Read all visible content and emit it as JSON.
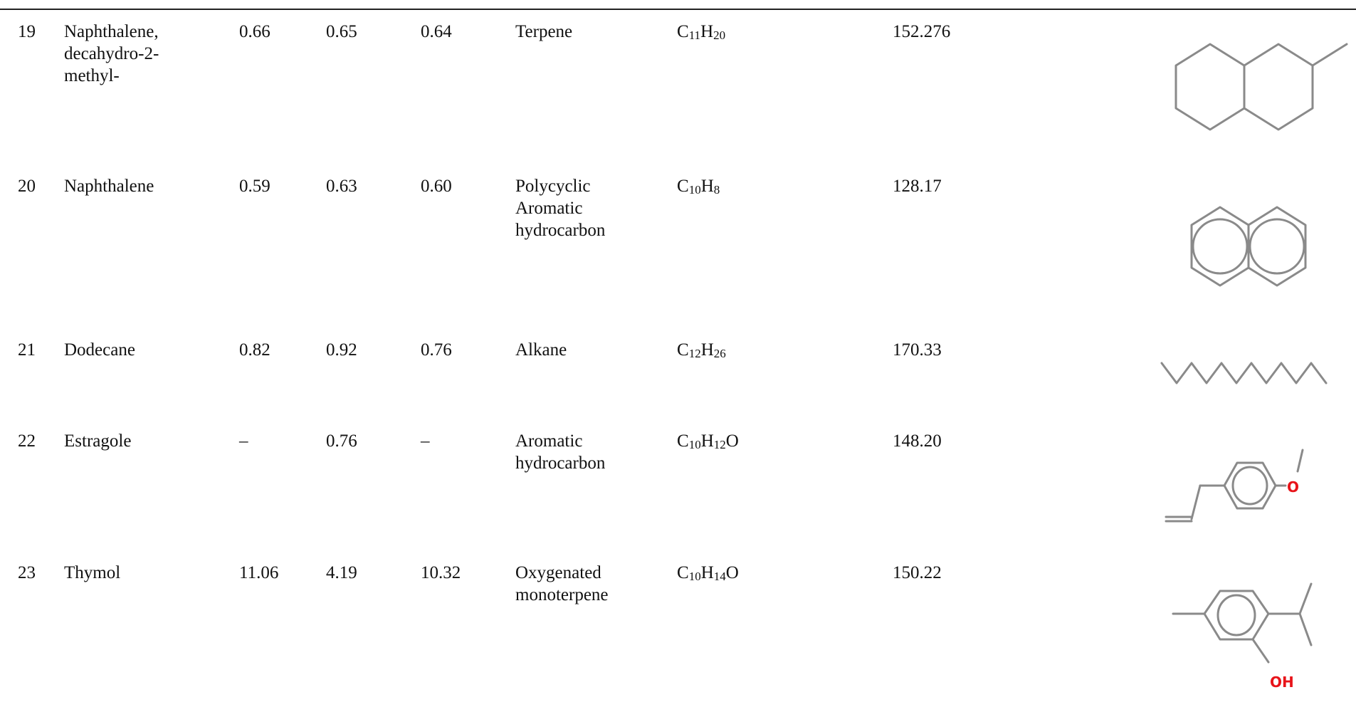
{
  "rows": [
    {
      "num": "19",
      "name_lines": [
        "Naphthalene,",
        "decahydro-2-",
        "methyl-"
      ],
      "v1": "0.66",
      "v2": "0.65",
      "v3": "0.64",
      "class_lines": [
        "Terpene"
      ],
      "formula": {
        "C": "C",
        "c": "11",
        "H": "H",
        "h": "20",
        "tail": ""
      },
      "mw": "152.276",
      "structure": "decahydro-2-methylnaphthalene-structure"
    },
    {
      "num": "20",
      "name_lines": [
        "Naphthalene"
      ],
      "v1": "0.59",
      "v2": "0.63",
      "v3": "0.60",
      "class_lines": [
        "Polycyclic",
        "Aromatic",
        "hydrocarbon"
      ],
      "formula": {
        "C": "C",
        "c": "10",
        "H": "H",
        "h": "8",
        "tail": ""
      },
      "mw": "128.17",
      "structure": "naphthalene-structure"
    },
    {
      "num": "21",
      "name_lines": [
        "Dodecane"
      ],
      "v1": "0.82",
      "v2": "0.92",
      "v3": "0.76",
      "class_lines": [
        "Alkane"
      ],
      "formula": {
        "C": "C",
        "c": "12",
        "H": "H",
        "h": "26",
        "tail": ""
      },
      "mw": "170.33",
      "structure": "dodecane-structure"
    },
    {
      "num": "22",
      "name_lines": [
        "Estragole"
      ],
      "v1": "–",
      "v2": "0.76",
      "v3": "–",
      "class_lines": [
        "Aromatic",
        "hydrocarbon"
      ],
      "formula": {
        "C": "C",
        "c": "10",
        "H": "H",
        "h": "12",
        "tail": "O"
      },
      "mw": "148.20",
      "structure": "estragole-structure",
      "atom_label": "O"
    },
    {
      "num": "23",
      "name_lines": [
        "Thymol"
      ],
      "v1": "11.06",
      "v2": "4.19",
      "v3": "10.32",
      "class_lines": [
        "Oxygenated",
        "monoterpene"
      ],
      "formula": {
        "C": "C",
        "c": "10",
        "H": "H",
        "h": "14",
        "tail": "O"
      },
      "mw": "150.22",
      "structure": "thymol-structure",
      "atom_label": "OH"
    }
  ],
  "colors": {
    "text": "#111111",
    "bond": "#8a8a8a",
    "oxygen": "#e8141a",
    "rule": "#222222"
  }
}
